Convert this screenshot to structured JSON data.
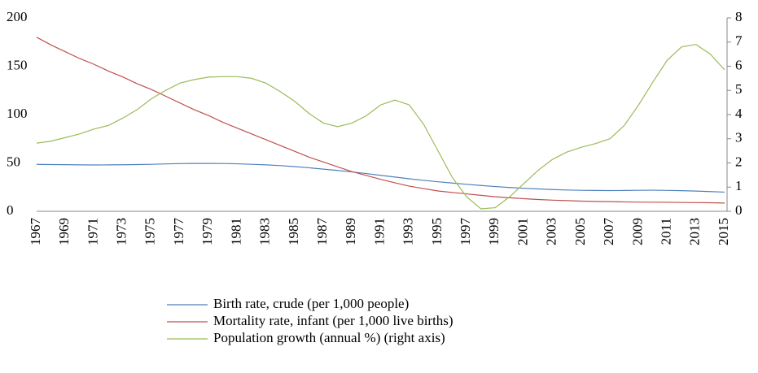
{
  "chart_data": {
    "type": "line",
    "categories": [
      "1967",
      null,
      "1969",
      null,
      "1971",
      null,
      "1973",
      null,
      "1975",
      null,
      "1977",
      null,
      "1979",
      null,
      "1981",
      null,
      "1983",
      null,
      "1985",
      null,
      "1987",
      null,
      "1989",
      null,
      "1991",
      null,
      "1993",
      null,
      "1995",
      null,
      "1997",
      null,
      "1999",
      null,
      "2001",
      null,
      "2003",
      null,
      "2005",
      null,
      "2007",
      null,
      "2009",
      null,
      "2011",
      null,
      "2013",
      null,
      "2015"
    ],
    "series": [
      {
        "name": "Birth rate, crude (per 1,000 people)",
        "color": "#4f81bd",
        "values": [
          48.5,
          48.3,
          48.2,
          48,
          47.9,
          48,
          48.1,
          48.3,
          48.6,
          49,
          49.3,
          49.5,
          49.5,
          49.4,
          49.1,
          48.6,
          48,
          47.2,
          46.2,
          45,
          43.6,
          42.2,
          40.7,
          39,
          37.2,
          35.4,
          33.6,
          32,
          30.5,
          29.2,
          27.9,
          26.7,
          25.6,
          24.6,
          23.8,
          23.1,
          22.5,
          22,
          21.7,
          21.5,
          21.4,
          21.5,
          21.7,
          21.8,
          21.6,
          21.3,
          20.9,
          20.4,
          19.8
        ]
      },
      {
        "name": "Mortality rate, infant (per 1,000 live births)",
        "color": "#c0504d",
        "values": [
          180,
          172,
          165,
          158,
          152,
          145,
          139,
          132,
          126,
          119,
          112,
          105,
          99,
          92,
          86,
          80,
          74,
          68,
          62,
          56,
          51,
          46,
          41,
          37,
          33,
          29.5,
          26,
          23.5,
          21,
          19.5,
          18,
          16.5,
          15,
          14,
          13,
          12.2,
          11.5,
          11,
          10.5,
          10.2,
          10,
          9.7,
          9.5,
          9.4,
          9.3,
          9.1,
          9,
          8.8,
          8.5
        ]
      },
      {
        "name": "Population growth (annual %) (right axis)",
        "color": "#9bbb59",
        "axis": "y2",
        "values": [
          2.82,
          2.9,
          3.05,
          3.2,
          3.4,
          3.55,
          3.85,
          4.2,
          4.65,
          5.0,
          5.3,
          5.45,
          5.55,
          5.57,
          5.57,
          5.5,
          5.3,
          4.95,
          4.55,
          4.05,
          3.65,
          3.5,
          3.65,
          3.95,
          4.4,
          4.6,
          4.4,
          3.6,
          2.5,
          1.4,
          0.6,
          0.1,
          0.15,
          0.6,
          1.15,
          1.7,
          2.15,
          2.45,
          2.65,
          2.8,
          3.0,
          3.55,
          4.4,
          5.35,
          6.25,
          6.8,
          6.9,
          6.5,
          5.85
        ]
      }
    ],
    "ylim": [
      0,
      200
    ],
    "yticks": [
      0,
      50,
      100,
      150,
      200
    ],
    "y2lim": [
      0,
      8
    ],
    "y2ticks": [
      0,
      1,
      2,
      3,
      4,
      5,
      6,
      7,
      8
    ],
    "legend": "bottom"
  }
}
